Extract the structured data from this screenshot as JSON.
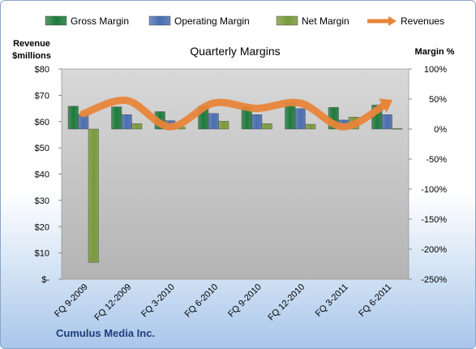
{
  "chart_data": {
    "type": "bar",
    "title": "Quarterly Margins",
    "company": "Cumulus Media Inc.",
    "left_axis_title_line1": "Revenue",
    "left_axis_title_line2": "$millions",
    "right_axis_title": "Margin %",
    "categories": [
      "FQ 9-2009",
      "FQ 12-2009",
      "FQ 3-2010",
      "FQ 6-2010",
      "FQ 9-2010",
      "FQ 12-2010",
      "FQ 3-2011",
      "FQ 6-2011"
    ],
    "left_ticks": [
      "$80",
      "$70",
      "$60",
      "$50",
      "$40",
      "$30",
      "$20",
      "$10",
      "$-"
    ],
    "right_ticks": [
      "100%",
      "50%",
      "0%",
      "-50%",
      "-100%",
      "-150%",
      "-200%",
      "-250%"
    ],
    "ylim_left": [
      0,
      80
    ],
    "ylim_right": [
      -250,
      100
    ],
    "series": [
      {
        "name": "Gross Margin",
        "axis": "right",
        "color": "#1f7a3c",
        "values": [
          38,
          37,
          29,
          38,
          38,
          44,
          36,
          40
        ]
      },
      {
        "name": "Operating Margin",
        "axis": "right",
        "color": "#4a6eb0",
        "values": [
          24,
          24,
          14,
          26,
          24,
          34,
          15,
          24
        ]
      },
      {
        "name": "Net Margin",
        "axis": "right",
        "color": "#7a9a3c",
        "values": [
          -222,
          9,
          3,
          13,
          9,
          8,
          20,
          1
        ]
      },
      {
        "name": "Revenues",
        "axis": "left",
        "color": "#e8853a",
        "type": "line",
        "values": [
          63,
          68,
          58,
          67,
          65,
          67,
          58,
          67
        ]
      }
    ],
    "grid": false,
    "legend_position": "top"
  }
}
